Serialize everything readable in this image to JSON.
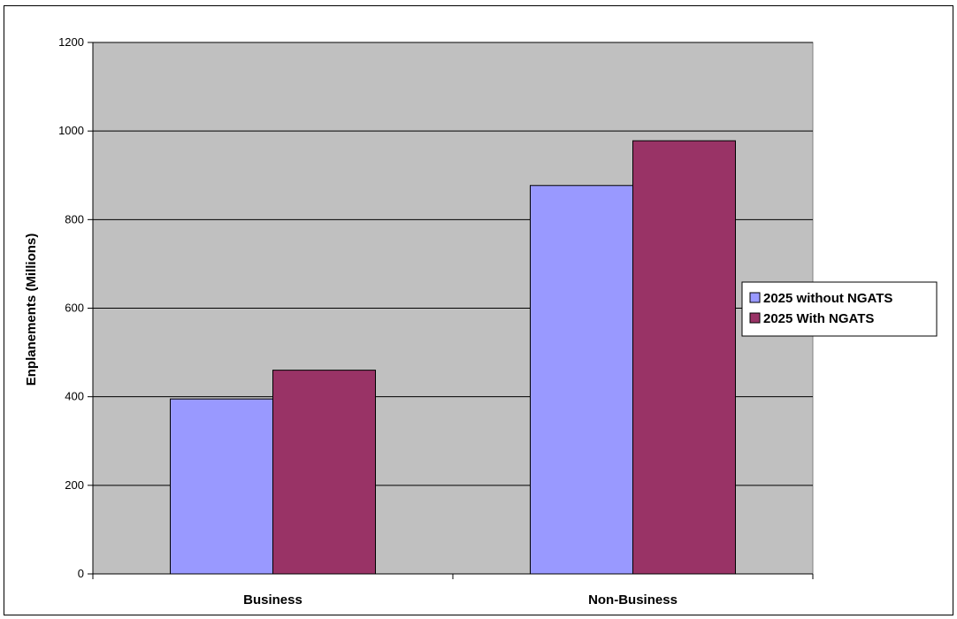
{
  "chart_data": {
    "type": "bar",
    "categories": [
      "Business",
      "Non-Business"
    ],
    "series": [
      {
        "name": "2025 without NGATS",
        "values": [
          395,
          877
        ],
        "color": "#9999ff"
      },
      {
        "name": "2025 With NGATS",
        "values": [
          460,
          978
        ],
        "color": "#993366"
      }
    ],
    "title": "",
    "xlabel": "",
    "ylabel": "Enplanements (Millions)",
    "ylim": [
      0,
      1200
    ],
    "yticks": [
      0,
      200,
      400,
      600,
      800,
      1000,
      1200
    ],
    "grid": true,
    "legend_position": "right",
    "plot_background": "#c0c0c0"
  }
}
